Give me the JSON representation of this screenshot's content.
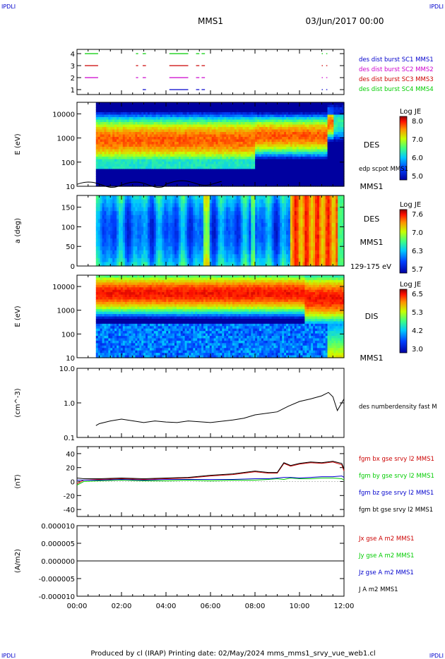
{
  "header": {
    "corner_tl": "IPDLI",
    "corner_tr": "IPDLI",
    "corner_bl": "IPDLI",
    "corner_br": "IPDLI",
    "spacecraft": "MMS1",
    "datetime": "03/Jun/2017 00:00"
  },
  "footer": {
    "text": "Produced by cl (IRAP)   Printing date: 02/May/2024   mms_mms1_srvy_vue_web1.cl"
  },
  "colors": {
    "c1": "#0000cc",
    "c2": "#cc00cc",
    "c3": "#cc0000",
    "c4": "#00cc00",
    "black": "#000000"
  },
  "chart_data": [
    {
      "type": "line",
      "id": "burst",
      "yticks": [
        "4",
        "3",
        "2",
        "1"
      ],
      "legend": [
        {
          "label": "des dist burst SC1 MMS1",
          "color": "#0000cc"
        },
        {
          "label": "des dist burst SC2 MMS2",
          "color": "#cc00cc"
        },
        {
          "label": "des dist burst SC3 MMS3",
          "color": "#cc0000"
        },
        {
          "label": "des dist burst SC4 MMS4",
          "color": "#00cc00"
        }
      ],
      "intervals_hours": [
        [
          0.35,
          0.95
        ],
        [
          2.65,
          2.75
        ],
        [
          2.95,
          3.1
        ],
        [
          4.15,
          5.0
        ],
        [
          5.35,
          5.5
        ],
        [
          5.6,
          5.75
        ],
        [
          11.0,
          11.05
        ],
        [
          11.2,
          11.25
        ]
      ]
    },
    {
      "type": "heatmap",
      "id": "des_energy",
      "ylabel": "E (eV)",
      "yticks": [
        "10000",
        "1000",
        "100",
        "10"
      ],
      "right_labels": [
        "DES",
        "edp scpot MMS1",
        "MMS1"
      ],
      "colorbar": {
        "title": "Log JE",
        "ticks": [
          "8.0",
          "7.0",
          "6.0",
          "5.0"
        ]
      },
      "ylim": [
        10,
        30000
      ]
    },
    {
      "type": "heatmap",
      "id": "des_pitch",
      "ylabel": "a (deg)",
      "yticks": [
        "150",
        "100",
        "50",
        "0"
      ],
      "right_labels": [
        "DES",
        "MMS1",
        "129-175 eV"
      ],
      "colorbar": {
        "title": "Log JE",
        "ticks": [
          "7.6",
          "7.0",
          "6.3",
          "5.7"
        ]
      },
      "ylim": [
        0,
        180
      ]
    },
    {
      "type": "heatmap",
      "id": "dis_energy",
      "ylabel": "E (eV)",
      "yticks": [
        "10000",
        "1000",
        "100",
        "10"
      ],
      "right_labels": [
        "DIS",
        "MMS1"
      ],
      "colorbar": {
        "title": "Log JE",
        "ticks": [
          "6.5",
          "5.3",
          "4.2",
          "3.0"
        ]
      },
      "ylim": [
        10,
        30000
      ]
    },
    {
      "type": "line",
      "id": "density",
      "ylabel": "(cm^-3)",
      "yticks": [
        "10.0",
        "1.0",
        "0.1"
      ],
      "legend": [
        {
          "label": "des numberdensity fast M",
          "color": "#000000"
        }
      ],
      "ylim": [
        0.1,
        10
      ],
      "x": [
        0.85,
        1.0,
        1.5,
        2.0,
        3.0,
        3.5,
        4.0,
        4.5,
        5.0,
        6.0,
        7.0,
        7.5,
        8.0,
        9.0,
        9.5,
        10.0,
        10.5,
        11.0,
        11.3,
        11.5,
        11.7,
        12.0
      ],
      "y": [
        0.22,
        0.25,
        0.3,
        0.34,
        0.27,
        0.3,
        0.28,
        0.27,
        0.3,
        0.27,
        0.32,
        0.36,
        0.45,
        0.55,
        0.8,
        1.1,
        1.3,
        1.6,
        2.0,
        1.5,
        0.6,
        1.3
      ]
    },
    {
      "type": "line",
      "id": "fgm",
      "ylabel": "(nT)",
      "yticks": [
        "40",
        "20",
        "0",
        "-20",
        "-40"
      ],
      "legend": [
        {
          "label": "fgm bx gse srvy l2 MMS1",
          "color": "#cc0000"
        },
        {
          "label": "fgm by gse srvy l2 MMS1",
          "color": "#00cc00"
        },
        {
          "label": "fgm bz gse srvy l2 MMS1",
          "color": "#0000cc"
        },
        {
          "label": "fgm bt gse srvy l2 MMS1",
          "color": "#000000"
        }
      ],
      "ylim": [
        -50,
        50
      ],
      "x": [
        0.0,
        0.3,
        1.0,
        2.0,
        3.0,
        4.0,
        5.0,
        6.0,
        7.0,
        8.0,
        8.6,
        9.0,
        9.3,
        9.6,
        10.0,
        10.5,
        11.0,
        11.5,
        11.9,
        12.0
      ],
      "bx": [
        -3,
        2,
        3,
        4,
        3,
        4,
        5,
        8,
        10,
        14,
        12,
        12,
        26,
        22,
        25,
        27,
        26,
        28,
        24,
        15
      ],
      "by": [
        -5,
        0,
        1,
        2,
        1,
        1,
        2,
        1,
        2,
        2,
        3,
        4,
        3,
        5,
        4,
        4,
        5,
        5,
        4,
        2
      ],
      "bz": [
        2,
        2,
        2,
        3,
        2,
        3,
        3,
        3,
        3,
        4,
        4,
        5,
        6,
        6,
        5,
        6,
        7,
        7,
        8,
        6
      ],
      "bt": [
        5,
        4,
        4,
        5,
        4,
        5,
        6,
        9,
        11,
        15,
        13,
        13,
        27,
        23,
        26,
        28,
        27,
        29,
        26,
        18
      ]
    },
    {
      "type": "line",
      "id": "current",
      "ylabel": "(A/m2)",
      "yticks": [
        "0.000010",
        "0.000005",
        "0.000000",
        "-0.000005",
        "-0.000010"
      ],
      "legend": [
        {
          "label": "Jx gse A m2 MMS1",
          "color": "#cc0000"
        },
        {
          "label": "Jy gse A m2 MMS1",
          "color": "#00cc00"
        },
        {
          "label": "Jz gse A m2 MMS1",
          "color": "#0000cc"
        },
        {
          "label": "J A m2 MMS1",
          "color": "#000000"
        }
      ],
      "ylim": [
        -1e-05,
        1e-05
      ]
    }
  ],
  "xaxis": {
    "ticks": [
      "00:00",
      "02:00",
      "04:00",
      "06:00",
      "08:00",
      "10:00",
      "12:00"
    ],
    "xlim": [
      0,
      12
    ]
  }
}
